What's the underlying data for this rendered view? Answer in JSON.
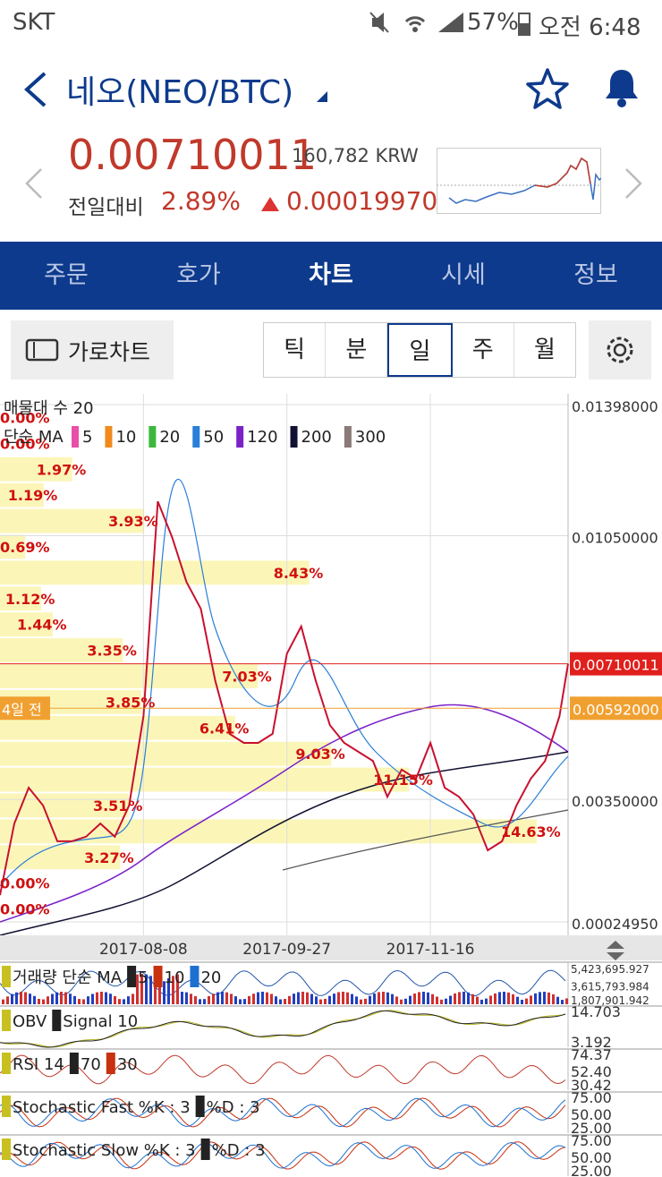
{
  "status_bar": {
    "carrier": "SKT",
    "battery": "57%",
    "time": "오전 6:48"
  },
  "header": {
    "title": "네오(NEO/BTC)"
  },
  "quote": {
    "price": "0.00710011",
    "krw": "160,782 KRW",
    "change_label": "전일대비",
    "change_pct": "2.89%",
    "change": "0.00019970"
  },
  "tabs": [
    "주문",
    "호가",
    "차트",
    "시세",
    "정보"
  ],
  "toolbar": {
    "landscape": "가로차트",
    "periods": [
      "틱",
      "분",
      "일",
      "주",
      "월"
    ]
  },
  "chart_data": {
    "type": "line",
    "legend_title": "매물대 수 20",
    "ma_label": "단순 MA",
    "ma": [
      {
        "name": "5",
        "color": "#e84fa8"
      },
      {
        "name": "10",
        "color": "#f08a1c"
      },
      {
        "name": "20",
        "color": "#3cb83c"
      },
      {
        "name": "50",
        "color": "#2a7fd8"
      },
      {
        "name": "120",
        "color": "#7a22c8"
      },
      {
        "name": "200",
        "color": "#111133"
      },
      {
        "name": "300",
        "color": "#8a7a78"
      }
    ],
    "x": [
      "2017-06-19",
      "2017-06-24",
      "2017-06-29",
      "2017-07-04",
      "2017-07-09",
      "2017-07-14",
      "2017-07-19",
      "2017-07-24",
      "2017-07-29",
      "2017-08-03",
      "2017-08-08",
      "2017-08-13",
      "2017-08-18",
      "2017-08-23",
      "2017-08-28",
      "2017-09-02",
      "2017-09-07",
      "2017-09-12",
      "2017-09-17",
      "2017-09-22",
      "2017-09-27",
      "2017-10-02",
      "2017-10-07",
      "2017-10-12",
      "2017-10-17",
      "2017-10-22",
      "2017-10-27",
      "2017-11-01",
      "2017-11-06",
      "2017-11-11",
      "2017-11-16",
      "2017-11-21",
      "2017-11-26",
      "2017-12-01",
      "2017-12-06",
      "2017-12-11",
      "2017-12-16",
      "2017-12-21",
      "2017-12-26",
      "2017-12-31",
      "2018-01-03"
    ],
    "values": [
      0.00096,
      0.00286,
      0.00381,
      0.00334,
      0.00239,
      0.00239,
      0.00251,
      0.00286,
      0.00251,
      0.00334,
      0.00571,
      0.01141,
      0.01046,
      0.00927,
      0.00856,
      0.00666,
      0.00524,
      0.005,
      0.005,
      0.00524,
      0.00737,
      0.00809,
      0.00666,
      0.00547,
      0.005,
      0.00476,
      0.00452,
      0.00357,
      0.00429,
      0.00405,
      0.005,
      0.00381,
      0.00357,
      0.0031,
      0.00215,
      0.00239,
      0.00334,
      0.00405,
      0.00452,
      0.00571,
      0.00710011
    ],
    "color": "#c8102e",
    "xlim": [
      "2017-06-19",
      "2018-01-03"
    ],
    "xticks": [
      "2017-08-08",
      "2017-09-27",
      "2017-11-16"
    ],
    "ylim": [
      0.0002495,
      0.01398
    ],
    "yticks": [
      {
        "value": 0.01398,
        "label": "0.01398000"
      },
      {
        "value": 0.0105,
        "label": "0.01050000"
      },
      {
        "value": 0.0035,
        "label": "0.00350000"
      },
      {
        "value": 0.0002495,
        "label": "0.00024950"
      }
    ],
    "grid": true,
    "price_tags": [
      {
        "value": 0.00710011,
        "label": "0.00710011",
        "color": "#e0201c"
      },
      {
        "value": 0.00592,
        "label": "0.00592000",
        "color": "#f0a030",
        "note": "4일 전"
      }
    ],
    "volume_profile": {
      "color": "#fbf6b8",
      "values": [
        0,
        0,
        1.97,
        1.19,
        3.93,
        0.69,
        8.43,
        1.12,
        1.44,
        3.35,
        7.03,
        3.85,
        6.41,
        9.03,
        11.15,
        3.51,
        14.63,
        3.27,
        0,
        0
      ],
      "value_labels": [
        "0.00%",
        "0.00%",
        "1.97%",
        "1.19%",
        "3.93%",
        "0.69%",
        "8.43%",
        "1.12%",
        "1.44%",
        "3.35%",
        "7.03%",
        "3.85%",
        "6.41%",
        "9.03%",
        "11.15%",
        "3.51%",
        "14.63%",
        "3.27%",
        "0.00%",
        "0.00%"
      ]
    }
  },
  "panels": [
    {
      "labels": [
        "거래량 단순 MA",
        "5",
        "10",
        "20"
      ],
      "axis": [
        "5,423,695.927",
        "3,615,793.984",
        "1,807,901.942"
      ]
    },
    {
      "labels": [
        "OBV",
        "Signal 10"
      ],
      "axis": [
        "14.703",
        "3.192"
      ]
    },
    {
      "labels": [
        "RSI 14",
        "70",
        "30"
      ],
      "axis": [
        "74.37",
        "52.40",
        "30.42"
      ]
    },
    {
      "labels": [
        "Stochastic Fast %K : 3",
        "%D : 3"
      ],
      "axis": [
        "75.00",
        "50.00",
        "25.00"
      ]
    },
    {
      "labels": [
        "Stochastic Slow %K : 3",
        "%D : 3"
      ],
      "axis": [
        "75.00",
        "50.00",
        "25.00"
      ]
    }
  ]
}
